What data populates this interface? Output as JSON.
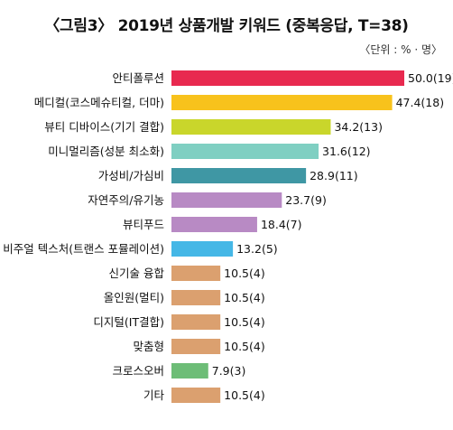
{
  "header": {
    "title": "〈그림3〉 2019년 상품개발 키워드 (중복응답, T=38)",
    "unit": "〈단위 : % · 명〉"
  },
  "chart_data": {
    "type": "bar",
    "orientation": "horizontal",
    "title": "〈그림3〉 2019년 상품개발 키워드 (중복응답, T=38)",
    "xlabel": "",
    "ylabel": "",
    "grid": false,
    "categories": [
      "안티폴루션",
      "메디컬(코스메슈티컬, 더마)",
      "뷰티 디바이스(기기 결합)",
      "미니멀리즘(성분 최소화)",
      "가성비/가심비",
      "자연주의/유기농",
      "뷰티푸드",
      "비주얼 텍스처(트랜스 포뮬레이션)",
      "신기술 융합",
      "올인원(멀티)",
      "디지털(IT결합)",
      "맞춤형",
      "크로스오버",
      "기타"
    ],
    "values": [
      50.0,
      47.4,
      34.2,
      31.6,
      28.9,
      23.7,
      18.4,
      13.2,
      10.5,
      10.5,
      10.5,
      10.5,
      7.9,
      10.5
    ],
    "counts": [
      19,
      18,
      13,
      12,
      11,
      9,
      7,
      5,
      4,
      4,
      4,
      4,
      3,
      4
    ],
    "value_labels": [
      "50.0(19)",
      "47.4(18)",
      "34.2(13)",
      "31.6(12)",
      "28.9(11)",
      "23.7(9)",
      "18.4(7)",
      "13.2(5)",
      "10.5(4)",
      "10.5(4)",
      "10.5(4)",
      "10.5(4)",
      "7.9(3)",
      "10.5(4)"
    ],
    "colors": [
      "#e8294f",
      "#f8c21c",
      "#c9d62b",
      "#7fcfc2",
      "#3f97a4",
      "#b88ac4",
      "#b88ac4",
      "#45b7e6",
      "#dba06f",
      "#dba06f",
      "#dba06f",
      "#dba06f",
      "#6dbd77",
      "#dba06f"
    ],
    "xlim": [
      0,
      50
    ]
  }
}
